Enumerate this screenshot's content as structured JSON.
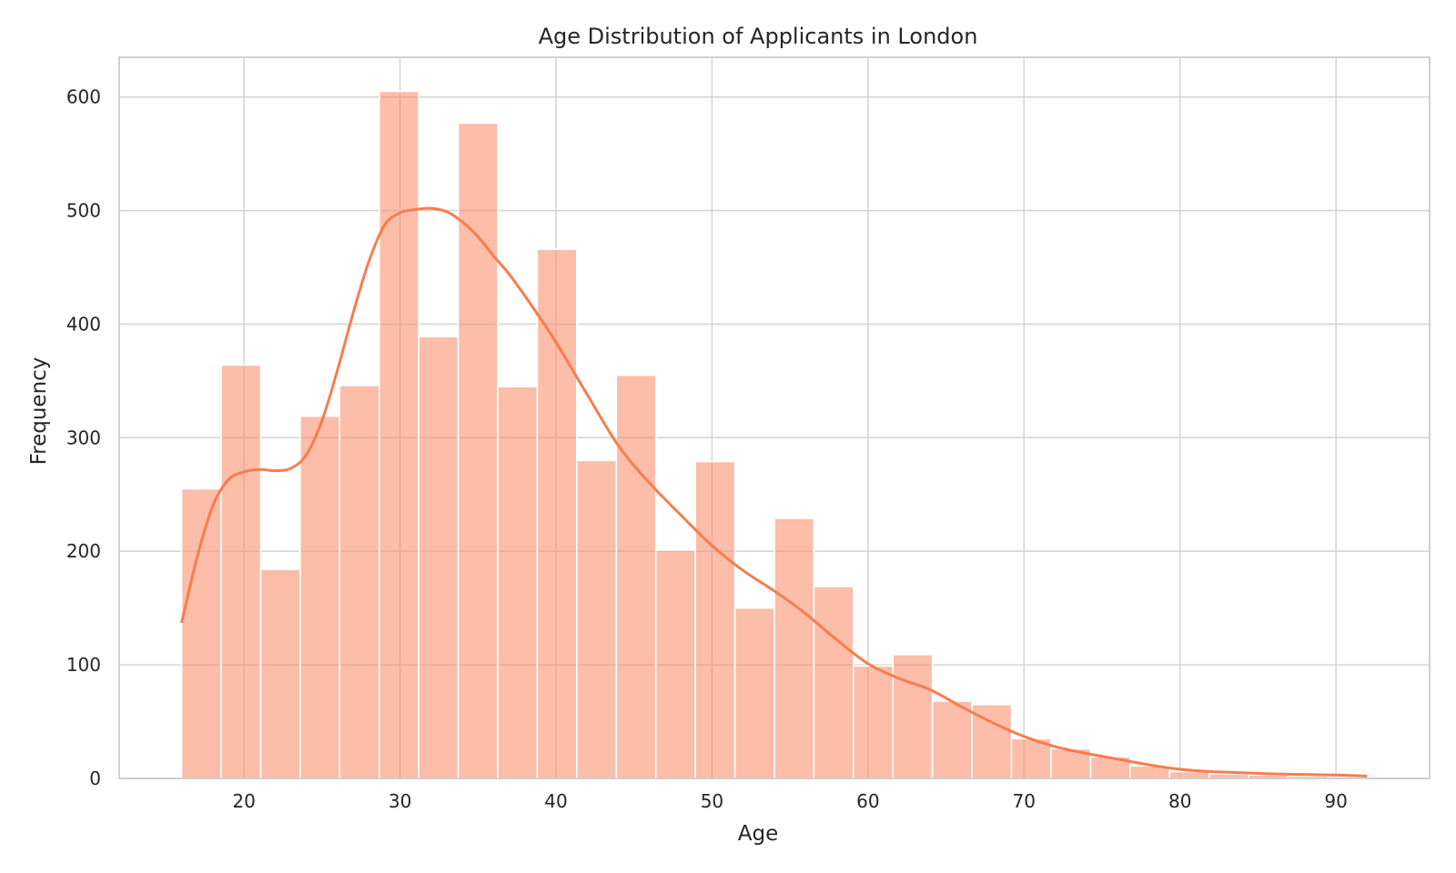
{
  "chart_data": {
    "type": "bar",
    "title": "Age Distribution of Applicants in London",
    "xlabel": "Age",
    "ylabel": "Frequency",
    "xlim": [
      12,
      96
    ],
    "ylim": [
      0,
      635
    ],
    "xticks": [
      20,
      30,
      40,
      50,
      60,
      70,
      80,
      90
    ],
    "yticks": [
      0,
      100,
      200,
      300,
      400,
      500,
      600
    ],
    "grid": true,
    "bar_color": "#fa8e6a",
    "bar_opacity": 0.58,
    "kde_color": "#f77d4d",
    "bins": [
      {
        "start": 16.0,
        "end": 18.53,
        "count": 255
      },
      {
        "start": 18.53,
        "end": 21.07,
        "count": 364
      },
      {
        "start": 21.07,
        "end": 23.6,
        "count": 184
      },
      {
        "start": 23.6,
        "end": 26.13,
        "count": 319
      },
      {
        "start": 26.13,
        "end": 28.67,
        "count": 346
      },
      {
        "start": 28.67,
        "end": 31.2,
        "count": 605
      },
      {
        "start": 31.2,
        "end": 33.73,
        "count": 389
      },
      {
        "start": 33.73,
        "end": 36.27,
        "count": 577
      },
      {
        "start": 36.27,
        "end": 38.8,
        "count": 345
      },
      {
        "start": 38.8,
        "end": 41.33,
        "count": 466
      },
      {
        "start": 41.33,
        "end": 43.87,
        "count": 280
      },
      {
        "start": 43.87,
        "end": 46.4,
        "count": 355
      },
      {
        "start": 46.4,
        "end": 48.93,
        "count": 201
      },
      {
        "start": 48.93,
        "end": 51.47,
        "count": 279
      },
      {
        "start": 51.47,
        "end": 54.0,
        "count": 150
      },
      {
        "start": 54.0,
        "end": 56.53,
        "count": 229
      },
      {
        "start": 56.53,
        "end": 59.07,
        "count": 169
      },
      {
        "start": 59.07,
        "end": 61.6,
        "count": 99
      },
      {
        "start": 61.6,
        "end": 64.13,
        "count": 109
      },
      {
        "start": 64.13,
        "end": 66.67,
        "count": 68
      },
      {
        "start": 66.67,
        "end": 69.2,
        "count": 65
      },
      {
        "start": 69.2,
        "end": 71.73,
        "count": 35
      },
      {
        "start": 71.73,
        "end": 74.27,
        "count": 26
      },
      {
        "start": 74.27,
        "end": 76.8,
        "count": 19
      },
      {
        "start": 76.8,
        "end": 79.33,
        "count": 11
      },
      {
        "start": 79.33,
        "end": 81.87,
        "count": 6
      },
      {
        "start": 81.87,
        "end": 84.4,
        "count": 4
      },
      {
        "start": 84.4,
        "end": 86.93,
        "count": 3
      },
      {
        "start": 86.93,
        "end": 89.47,
        "count": 2
      },
      {
        "start": 89.47,
        "end": 92.0,
        "count": 1
      }
    ],
    "kde": {
      "x": [
        16,
        17,
        18,
        19,
        20,
        21,
        22,
        23,
        24,
        25,
        26,
        27,
        28,
        29,
        30,
        31,
        32,
        33,
        34,
        35,
        36,
        37,
        38,
        39,
        40,
        42,
        44,
        46,
        48,
        50,
        52,
        54,
        56,
        58,
        60,
        62,
        64,
        66,
        68,
        70,
        72,
        74,
        76,
        78,
        80,
        82,
        84,
        86,
        88,
        90,
        92
      ],
      "y": [
        137,
        195,
        240,
        263,
        270,
        272,
        271,
        273,
        285,
        315,
        360,
        410,
        455,
        487,
        498,
        501,
        502,
        499,
        490,
        477,
        460,
        444,
        425,
        405,
        384,
        338,
        293,
        260,
        232,
        205,
        183,
        165,
        145,
        122,
        101,
        88,
        78,
        63,
        49,
        37,
        28,
        22,
        17,
        12,
        8,
        6,
        5,
        4,
        3.5,
        3,
        2
      ]
    }
  }
}
